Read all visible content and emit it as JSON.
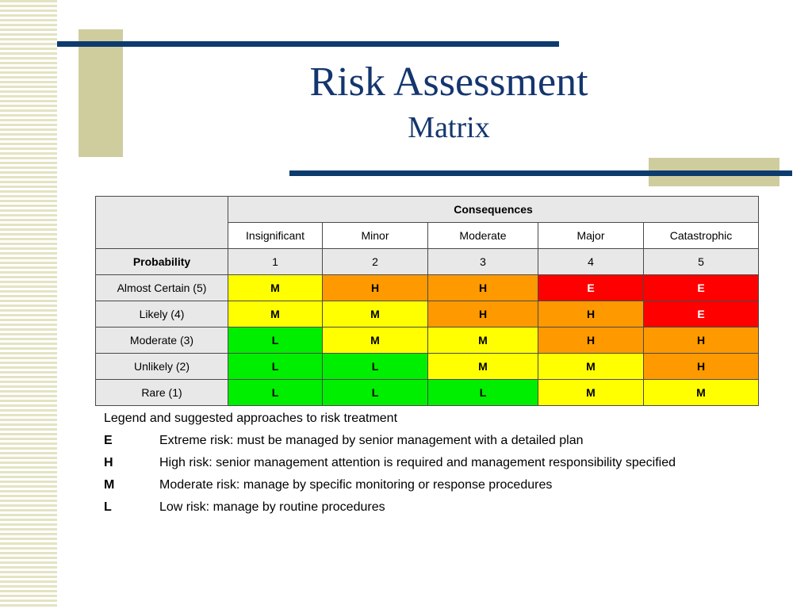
{
  "title": "Risk Assessment",
  "subtitle": "Matrix",
  "table": {
    "consequences_header": "Consequences",
    "probability_header": "Probability",
    "consequence_names": [
      "Insignificant",
      "Minor",
      "Moderate",
      "Major",
      "Catastrophic"
    ],
    "consequence_numbers": [
      "1",
      "2",
      "3",
      "4",
      "5"
    ],
    "rows": [
      {
        "label": "Almost Certain (5)",
        "cells": [
          "M",
          "H",
          "H",
          "E",
          "E"
        ]
      },
      {
        "label": "Likely (4)",
        "cells": [
          "M",
          "M",
          "H",
          "H",
          "E"
        ]
      },
      {
        "label": "Moderate (3)",
        "cells": [
          "L",
          "M",
          "M",
          "H",
          "H"
        ]
      },
      {
        "label": "Unlikely (2)",
        "cells": [
          "L",
          "L",
          "M",
          "M",
          "H"
        ]
      },
      {
        "label": "Rare (1)",
        "cells": [
          "L",
          "L",
          "L",
          "M",
          "M"
        ]
      }
    ]
  },
  "colors": {
    "L": "#00ee00",
    "M": "#ffff00",
    "H": "#ff9900",
    "E": "#ff0000",
    "title": "#14366e",
    "bars": "#0d3b6e",
    "accent_beige": "#cfcd9e"
  },
  "legend": {
    "heading": "Legend and suggested approaches to risk treatment",
    "items": [
      {
        "code": "E",
        "text": "Extreme risk: must be managed by senior management with a detailed plan"
      },
      {
        "code": "H",
        "text": "High risk: senior management attention is required and management responsibility specified"
      },
      {
        "code": "M",
        "text": "Moderate risk: manage by specific monitoring or response procedures"
      },
      {
        "code": "L",
        "text": "Low risk: manage by routine procedures"
      }
    ]
  }
}
